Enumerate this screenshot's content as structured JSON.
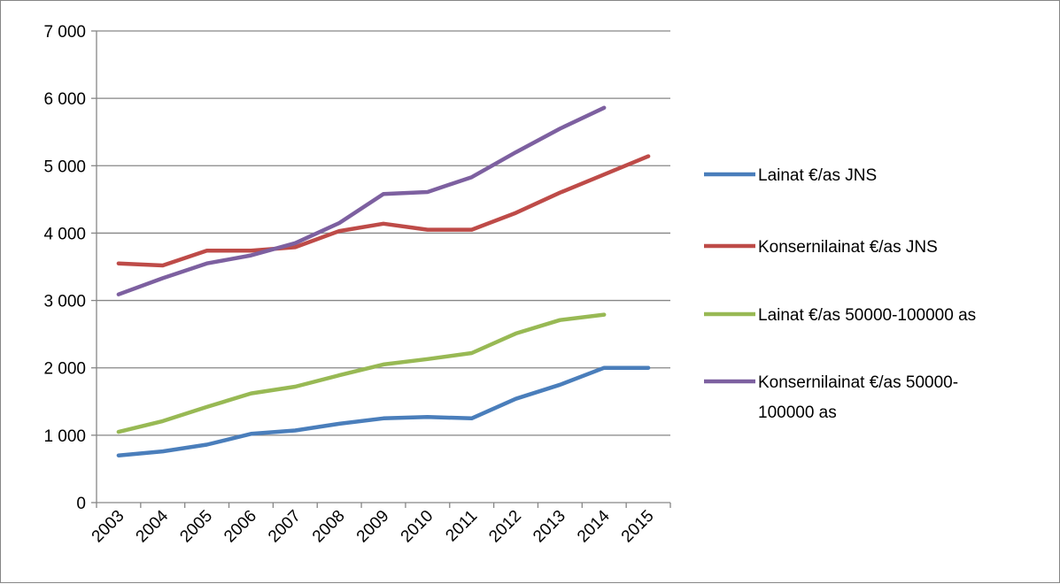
{
  "chart_data": {
    "type": "line",
    "title": "",
    "xlabel": "",
    "ylabel": "",
    "categories": [
      "2003",
      "2004",
      "2005",
      "2006",
      "2007",
      "2008",
      "2009",
      "2010",
      "2011",
      "2012",
      "2013",
      "2014",
      "2015"
    ],
    "ylim": [
      0,
      7000
    ],
    "y_ticks": [
      0,
      1000,
      2000,
      3000,
      4000,
      5000,
      6000,
      7000
    ],
    "y_tick_labels": [
      "0",
      "1 000",
      "2 000",
      "3 000",
      "4 000",
      "5 000",
      "6 000",
      "7 000"
    ],
    "grid": true,
    "legend_position": "right",
    "series": [
      {
        "name": "Lainat €/as JNS",
        "color": "#4a7ebb",
        "values": [
          700,
          760,
          860,
          1020,
          1070,
          1170,
          1250,
          1270,
          1250,
          1540,
          1750,
          2000,
          2000
        ]
      },
      {
        "name": "Konsernilainat €/as JNS",
        "color": "#be4b48",
        "values": [
          3550,
          3520,
          3740,
          3740,
          3790,
          4030,
          4140,
          4050,
          4050,
          4300,
          4600,
          4870,
          5140
        ]
      },
      {
        "name": "Lainat €/as 50000-100000 as",
        "color": "#98b954",
        "values": [
          1050,
          1210,
          1420,
          1620,
          1720,
          1890,
          2050,
          2130,
          2220,
          2510,
          2710,
          2790,
          null
        ]
      },
      {
        "name": "Konsernilainat €/as 50000-100000 as",
        "name_lines": [
          "Konsernilainat €/as 50000-",
          "100000 as"
        ],
        "color": "#7d60a0",
        "values": [
          3090,
          3330,
          3550,
          3670,
          3850,
          4150,
          4580,
          4610,
          4830,
          5200,
          5550,
          5860,
          null
        ]
      }
    ]
  }
}
